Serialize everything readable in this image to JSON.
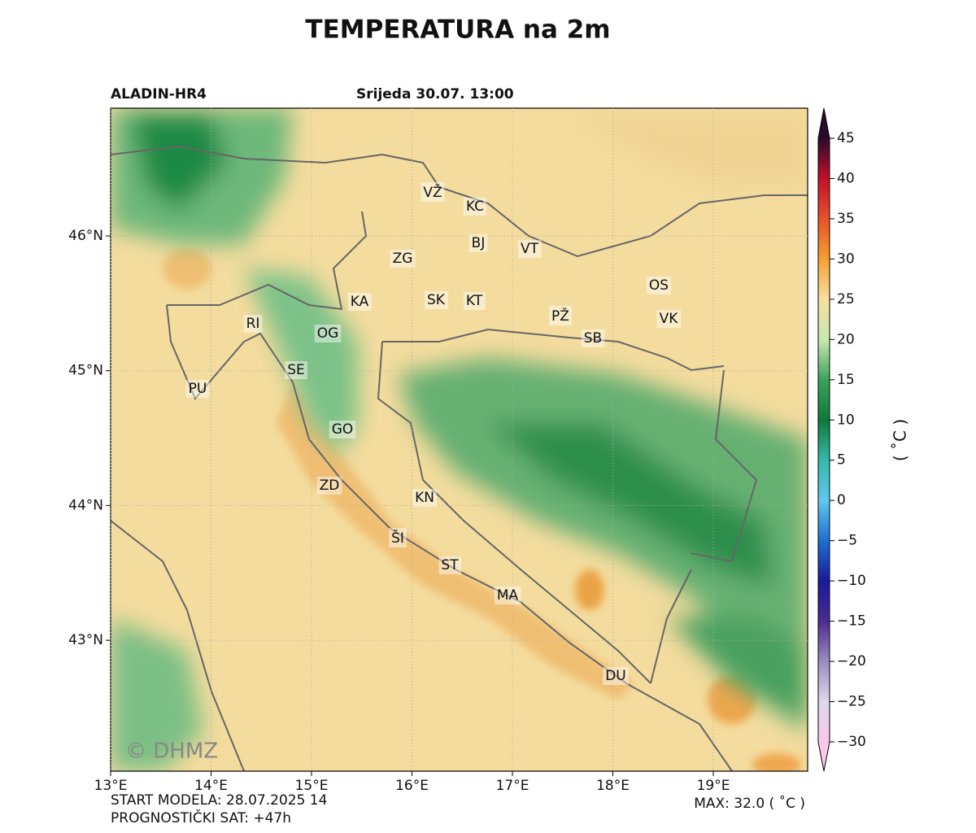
{
  "header": {
    "title": "TEMPERATURA na 2m",
    "model": "ALADIN-HR4",
    "valid_time": "Srijeda 30.07. 13:00"
  },
  "map": {
    "lon_ticks": [
      {
        "value": 13,
        "label": "13°E"
      },
      {
        "value": 14,
        "label": "14°E"
      },
      {
        "value": 15,
        "label": "15°E"
      },
      {
        "value": 16,
        "label": "16°E"
      },
      {
        "value": 17,
        "label": "17°E"
      },
      {
        "value": 18,
        "label": "18°E"
      },
      {
        "value": 19,
        "label": "19°E"
      }
    ],
    "lat_ticks": [
      {
        "value": 46,
        "label": "46°N"
      },
      {
        "value": 45,
        "label": "45°N"
      },
      {
        "value": 44,
        "label": "44°N"
      },
      {
        "value": 43,
        "label": "43°N"
      }
    ],
    "cities": [
      "VŽ",
      "KC",
      "BJ",
      "VT",
      "ZG",
      "OS",
      "KA",
      "SK",
      "KT",
      "PŽ",
      "VK",
      "SB",
      "RI",
      "OG",
      "SE",
      "PU",
      "GO",
      "ZD",
      "KN",
      "ŠI",
      "ST",
      "MA",
      "DU"
    ],
    "watermark": "© DHMZ"
  },
  "colorbar": {
    "label": "( ˚C )",
    "ticks": [
      {
        "value": -30,
        "label": "−30"
      },
      {
        "value": -25,
        "label": "−25"
      },
      {
        "value": -20,
        "label": "−20"
      },
      {
        "value": -15,
        "label": "−15"
      },
      {
        "value": -10,
        "label": "−10"
      },
      {
        "value": -5,
        "label": "−5"
      },
      0,
      5,
      10,
      15,
      20,
      25,
      30,
      35,
      40,
      45
    ],
    "colors": [
      "#f9c8ea",
      "#ddd8ea",
      "#9b8cc0",
      "#4b2a8f",
      "#1a1a9c",
      "#1f6fd0",
      "#5fc8f0",
      "#35b8a8",
      "#0e7a3a",
      "#3ca35a",
      "#c8e8b0",
      "#f6dfa0",
      "#f5a030",
      "#e8502a",
      "#c0102a",
      "#2a0a2a"
    ]
  },
  "footer": {
    "start": "START MODELA: 28.07.2025 14",
    "lead": "PROGNOSTIČKI SAT: +47h",
    "max": "MAX: 32.0 ( ˚C )"
  }
}
